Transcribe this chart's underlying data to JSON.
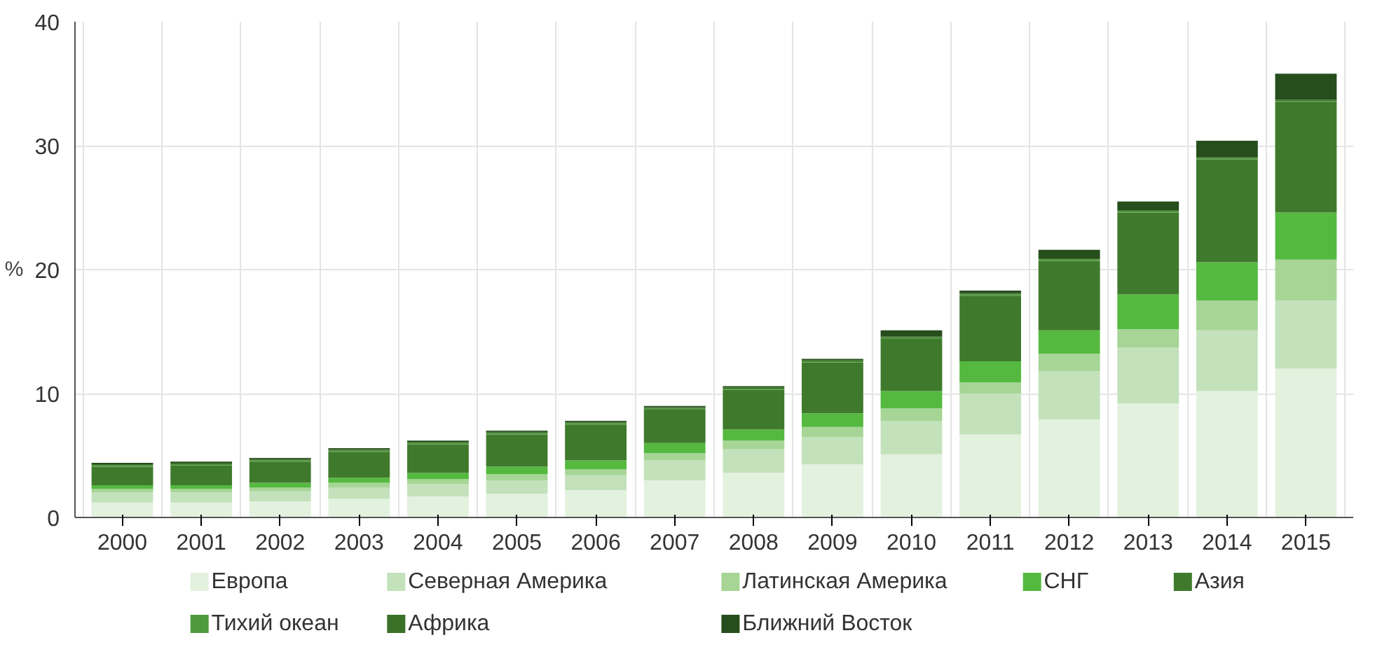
{
  "chart_data": {
    "type": "bar",
    "stacked": true,
    "ylabel": "%",
    "categories": [
      "2000",
      "2001",
      "2002",
      "2003",
      "2004",
      "2005",
      "2006",
      "2007",
      "2008",
      "2009",
      "2010",
      "2011",
      "2012",
      "2013",
      "2014",
      "2015"
    ],
    "ylim": [
      0,
      40
    ],
    "yticks": [
      0,
      10,
      20,
      30,
      40
    ],
    "grid": true,
    "legend": "bottom",
    "series": [
      {
        "name": "Европа",
        "color": "#e3f1df",
        "values": [
          1.2,
          1.2,
          1.3,
          1.5,
          1.7,
          1.9,
          2.2,
          3.0,
          3.6,
          4.3,
          5.1,
          6.7,
          7.9,
          9.2,
          10.2,
          12.0
        ]
      },
      {
        "name": "Северная Америка",
        "color": "#c3e2bb",
        "values": [
          0.8,
          0.8,
          0.8,
          0.9,
          1.0,
          1.1,
          1.2,
          1.6,
          1.9,
          2.2,
          2.7,
          3.3,
          3.9,
          4.5,
          4.9,
          5.5
        ]
      },
      {
        "name": "Латинская Америка",
        "color": "#a6d596",
        "values": [
          0.3,
          0.3,
          0.3,
          0.4,
          0.4,
          0.5,
          0.5,
          0.6,
          0.7,
          0.8,
          1.0,
          0.9,
          1.4,
          1.5,
          2.4,
          3.3
        ]
      },
      {
        "name": "СНГ",
        "color": "#55b940",
        "values": [
          0.3,
          0.3,
          0.4,
          0.4,
          0.5,
          0.6,
          0.7,
          0.8,
          0.9,
          1.1,
          1.4,
          1.7,
          1.9,
          2.8,
          3.1,
          3.8
        ]
      },
      {
        "name": "Азия",
        "color": "#3f7a2c",
        "values": [
          1.5,
          1.6,
          1.7,
          2.1,
          2.3,
          2.6,
          2.9,
          2.7,
          3.2,
          4.1,
          4.2,
          5.3,
          5.6,
          6.6,
          8.3,
          8.9
        ]
      },
      {
        "name": "Тихий океан",
        "color": "#4f9a3c",
        "values": [
          0.1,
          0.1,
          0.1,
          0.1,
          0.1,
          0.1,
          0.1,
          0.1,
          0.1,
          0.1,
          0.1,
          0.1,
          0.1,
          0.1,
          0.1,
          0.1
        ]
      },
      {
        "name": "Африка",
        "color": "#3a7028",
        "values": [
          0.1,
          0.1,
          0.1,
          0.1,
          0.1,
          0.1,
          0.1,
          0.1,
          0.1,
          0.1,
          0.1,
          0.1,
          0.1,
          0.1,
          0.1,
          0.1
        ]
      },
      {
        "name": "Ближний Восток",
        "color": "#264d1c",
        "values": [
          0.1,
          0.1,
          0.1,
          0.1,
          0.1,
          0.1,
          0.1,
          0.1,
          0.1,
          0.1,
          0.5,
          0.2,
          0.7,
          0.7,
          1.3,
          2.1
        ]
      }
    ]
  }
}
